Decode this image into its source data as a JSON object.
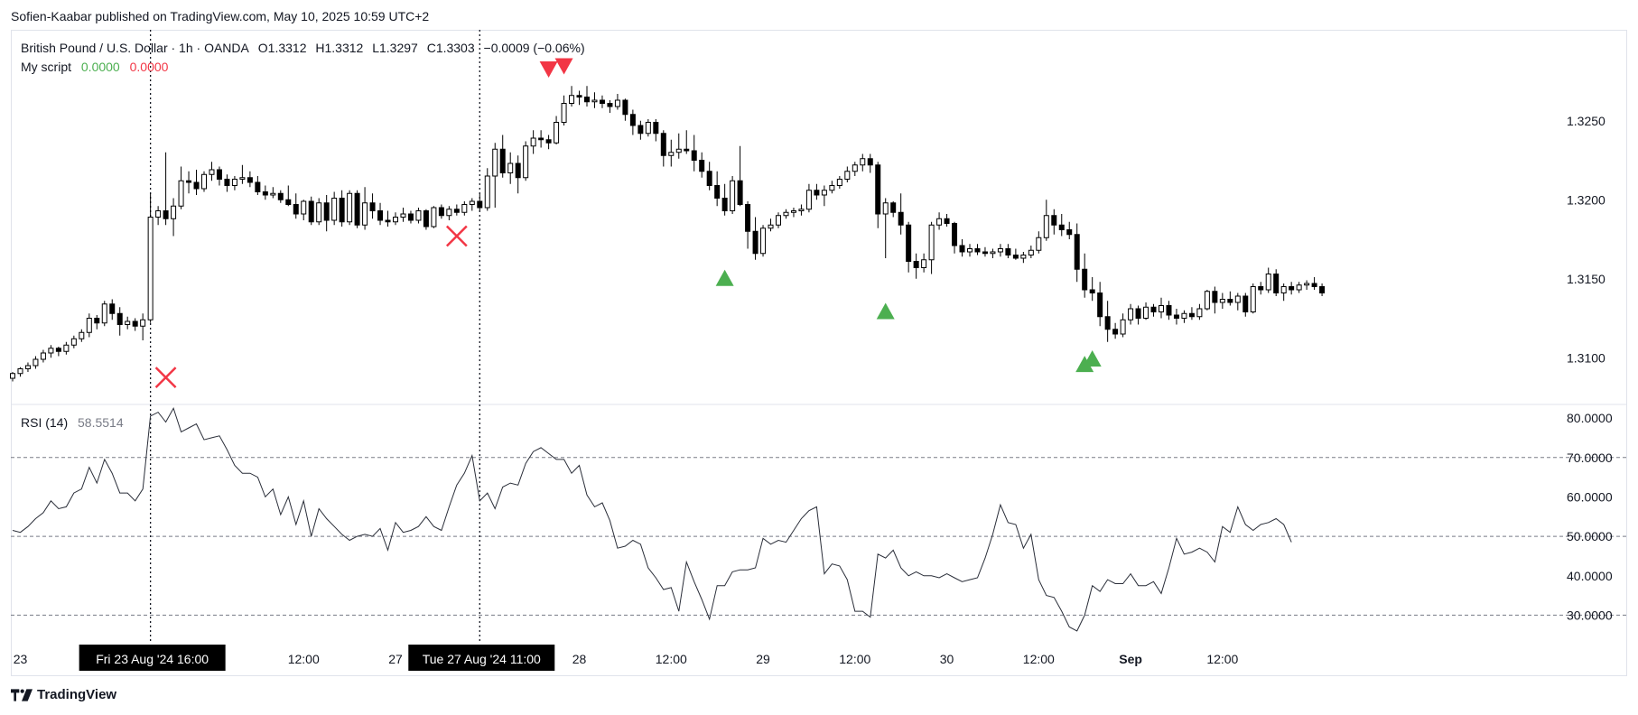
{
  "publisher": "Sofien-Kaabar published on TradingView.com, May 10, 2025 10:59 UTC+2",
  "legend": {
    "symbol": "British Pound / U.S. Dollar · 1h · OANDA",
    "open": "O1.3312",
    "high": "H1.3312",
    "low": "L1.3297",
    "close": "C1.3303",
    "change": "−0.0009 (−0.06%)",
    "script_name": "My script",
    "script_v1": "0.0000",
    "script_v2": "0.0000",
    "rsi_name": "RSI (14)",
    "rsi_value": "58.5514"
  },
  "footer": {
    "brand": "TradingView"
  },
  "colors": {
    "up": "#ffffff",
    "down": "#000000",
    "buy_signal": "#4caf50",
    "sell_signal": "#f23645",
    "text": "#131722"
  },
  "chart_data": {
    "type": "candlestick",
    "timeframe": "1h",
    "price_axis": {
      "ylim": [
        1.3075,
        1.3295
      ],
      "ticks": [
        "1.3100",
        "1.3150",
        "1.3200",
        "1.3250"
      ]
    },
    "rsi_axis": {
      "ylim": [
        23,
        83
      ],
      "ticks": [
        "30.0000",
        "40.0000",
        "50.0000",
        "60.0000",
        "70.0000",
        "80.0000"
      ],
      "levels": [
        70,
        50,
        30
      ]
    },
    "x_labels": [
      {
        "i": 1,
        "text": "23"
      },
      {
        "i": 38,
        "text": "12:00"
      },
      {
        "i": 50,
        "text": "27"
      },
      {
        "i": 74,
        "text": "28"
      },
      {
        "i": 86,
        "text": "12:00"
      },
      {
        "i": 98,
        "text": "29"
      },
      {
        "i": 110,
        "text": "12:00"
      },
      {
        "i": 122,
        "text": "30"
      },
      {
        "i": 134,
        "text": "12:00"
      },
      {
        "i": 146,
        "text": "Sep"
      },
      {
        "i": 158,
        "text": "12:00"
      }
    ],
    "crosshairs": [
      {
        "i": 18,
        "text": "Fri 23 Aug '24   16:00"
      },
      {
        "i": 61,
        "text": "Tue 27 Aug '24   11:00"
      }
    ],
    "markers": [
      {
        "i": 20,
        "type": "cross",
        "price": 1.30875
      },
      {
        "i": 58,
        "type": "cross",
        "price": 1.3177
      },
      {
        "i": 70,
        "type": "sell",
        "price": 1.3283
      },
      {
        "i": 72,
        "type": "sell",
        "price": 1.3285
      },
      {
        "i": 93,
        "type": "buy",
        "price": 1.315
      },
      {
        "i": 114,
        "type": "buy",
        "price": 1.3129
      },
      {
        "i": 140,
        "type": "buy",
        "price": 1.30955
      },
      {
        "i": 141,
        "type": "buy",
        "price": 1.3099
      }
    ],
    "candles": [
      [
        1.3087,
        1.3091,
        1.3085,
        1.309
      ],
      [
        1.309,
        1.3094,
        1.3088,
        1.3093
      ],
      [
        1.3093,
        1.3097,
        1.3091,
        1.3095
      ],
      [
        1.3095,
        1.3101,
        1.3093,
        1.3099
      ],
      [
        1.3099,
        1.3105,
        1.3097,
        1.3103
      ],
      [
        1.3103,
        1.3108,
        1.31,
        1.3106
      ],
      [
        1.3106,
        1.3107,
        1.3101,
        1.3104
      ],
      [
        1.3104,
        1.311,
        1.3102,
        1.3108
      ],
      [
        1.3108,
        1.3114,
        1.3106,
        1.3112
      ],
      [
        1.3112,
        1.3118,
        1.311,
        1.3116
      ],
      [
        1.3116,
        1.3128,
        1.3113,
        1.3125
      ],
      [
        1.3125,
        1.3127,
        1.3118,
        1.3122
      ],
      [
        1.3122,
        1.3136,
        1.312,
        1.3134
      ],
      [
        1.3134,
        1.3137,
        1.3124,
        1.3128
      ],
      [
        1.3128,
        1.3132,
        1.3114,
        1.3121
      ],
      [
        1.3121,
        1.3126,
        1.3118,
        1.3123
      ],
      [
        1.3123,
        1.3125,
        1.3117,
        1.312
      ],
      [
        1.312,
        1.3128,
        1.3111,
        1.3124
      ],
      [
        1.3124,
        1.3204,
        1.3122,
        1.3189
      ],
      [
        1.3189,
        1.3196,
        1.3184,
        1.3193
      ],
      [
        1.3193,
        1.323,
        1.3184,
        1.3188
      ],
      [
        1.3188,
        1.3201,
        1.3177,
        1.3196
      ],
      [
        1.3196,
        1.3221,
        1.3194,
        1.3212
      ],
      [
        1.3212,
        1.3218,
        1.3204,
        1.3211
      ],
      [
        1.3211,
        1.3219,
        1.3203,
        1.3207
      ],
      [
        1.3207,
        1.3218,
        1.3205,
        1.3216
      ],
      [
        1.3216,
        1.3224,
        1.3212,
        1.3219
      ],
      [
        1.3219,
        1.3221,
        1.3209,
        1.3213
      ],
      [
        1.3213,
        1.3216,
        1.3205,
        1.3209
      ],
      [
        1.3209,
        1.3215,
        1.3206,
        1.3213
      ],
      [
        1.3213,
        1.3222,
        1.321,
        1.3214
      ],
      [
        1.3214,
        1.3218,
        1.3208,
        1.3211
      ],
      [
        1.3211,
        1.3215,
        1.3203,
        1.3205
      ],
      [
        1.3205,
        1.3209,
        1.32,
        1.3203
      ],
      [
        1.3203,
        1.3208,
        1.3201,
        1.3204
      ],
      [
        1.3204,
        1.3206,
        1.3198,
        1.32
      ],
      [
        1.32,
        1.3209,
        1.3196,
        1.3197
      ],
      [
        1.3197,
        1.3204,
        1.3188,
        1.3191
      ],
      [
        1.3191,
        1.32,
        1.3187,
        1.3199
      ],
      [
        1.3199,
        1.3202,
        1.3184,
        1.3186
      ],
      [
        1.3186,
        1.3201,
        1.3184,
        1.3198
      ],
      [
        1.3198,
        1.3203,
        1.318,
        1.3187
      ],
      [
        1.3187,
        1.3205,
        1.3184,
        1.3201
      ],
      [
        1.3201,
        1.3206,
        1.3183,
        1.3186
      ],
      [
        1.3186,
        1.3206,
        1.3184,
        1.3204
      ],
      [
        1.3204,
        1.3206,
        1.3182,
        1.3184
      ],
      [
        1.3184,
        1.3208,
        1.3181,
        1.3198
      ],
      [
        1.3198,
        1.3204,
        1.3188,
        1.3193
      ],
      [
        1.3193,
        1.3198,
        1.3184,
        1.3187
      ],
      [
        1.3187,
        1.3193,
        1.3183,
        1.3186
      ],
      [
        1.3186,
        1.3192,
        1.3184,
        1.3189
      ],
      [
        1.3189,
        1.3195,
        1.3186,
        1.3191
      ],
      [
        1.3191,
        1.3193,
        1.3185,
        1.3187
      ],
      [
        1.3187,
        1.3195,
        1.3185,
        1.3193
      ],
      [
        1.3193,
        1.3194,
        1.3181,
        1.3183
      ],
      [
        1.3183,
        1.3196,
        1.3182,
        1.3195
      ],
      [
        1.3195,
        1.3197,
        1.3188,
        1.319
      ],
      [
        1.319,
        1.3196,
        1.3187,
        1.3194
      ],
      [
        1.3194,
        1.3197,
        1.319,
        1.3192
      ],
      [
        1.3192,
        1.3199,
        1.319,
        1.3197
      ],
      [
        1.3197,
        1.3201,
        1.3193,
        1.3199
      ],
      [
        1.3199,
        1.3204,
        1.3193,
        1.3195
      ],
      [
        1.3195,
        1.322,
        1.3193,
        1.3215
      ],
      [
        1.3215,
        1.3236,
        1.3195,
        1.3232
      ],
      [
        1.3232,
        1.3241,
        1.3214,
        1.3217
      ],
      [
        1.3217,
        1.323,
        1.321,
        1.3223
      ],
      [
        1.3223,
        1.3228,
        1.3204,
        1.3214
      ],
      [
        1.3214,
        1.3237,
        1.3212,
        1.3234
      ],
      [
        1.3234,
        1.3244,
        1.3229,
        1.3239
      ],
      [
        1.3239,
        1.3244,
        1.3233,
        1.3238
      ],
      [
        1.3238,
        1.3241,
        1.3232,
        1.3236
      ],
      [
        1.3236,
        1.3253,
        1.3235,
        1.3249
      ],
      [
        1.3249,
        1.3266,
        1.3247,
        1.3261
      ],
      [
        1.3261,
        1.3272,
        1.3259,
        1.3266
      ],
      [
        1.3266,
        1.3269,
        1.326,
        1.3265
      ],
      [
        1.3265,
        1.3272,
        1.3259,
        1.3262
      ],
      [
        1.3262,
        1.3268,
        1.3258,
        1.3263
      ],
      [
        1.3263,
        1.3266,
        1.3258,
        1.3261
      ],
      [
        1.3261,
        1.3263,
        1.3255,
        1.3259
      ],
      [
        1.3259,
        1.3267,
        1.3257,
        1.3263
      ],
      [
        1.3263,
        1.3264,
        1.325,
        1.3254
      ],
      [
        1.3254,
        1.3257,
        1.3241,
        1.3247
      ],
      [
        1.3247,
        1.325,
        1.3238,
        1.3242
      ],
      [
        1.3242,
        1.3251,
        1.324,
        1.3249
      ],
      [
        1.3249,
        1.3251,
        1.3237,
        1.3242
      ],
      [
        1.3242,
        1.3244,
        1.3221,
        1.3228
      ],
      [
        1.3228,
        1.3238,
        1.3221,
        1.323
      ],
      [
        1.323,
        1.3242,
        1.3226,
        1.3232
      ],
      [
        1.3232,
        1.3244,
        1.3229,
        1.3231
      ],
      [
        1.3231,
        1.3241,
        1.3218,
        1.3225
      ],
      [
        1.3225,
        1.323,
        1.3214,
        1.3218
      ],
      [
        1.3218,
        1.3224,
        1.3206,
        1.3209
      ],
      [
        1.3209,
        1.3218,
        1.3196,
        1.3201
      ],
      [
        1.3201,
        1.321,
        1.319,
        1.3193
      ],
      [
        1.3193,
        1.3215,
        1.3191,
        1.3212
      ],
      [
        1.3212,
        1.3234,
        1.3196,
        1.3197
      ],
      [
        1.3197,
        1.3199,
        1.3169,
        1.318
      ],
      [
        1.318,
        1.3189,
        1.3162,
        1.3166
      ],
      [
        1.3166,
        1.3184,
        1.3164,
        1.3182
      ],
      [
        1.3182,
        1.3188,
        1.318,
        1.3184
      ],
      [
        1.3184,
        1.3192,
        1.3182,
        1.319
      ],
      [
        1.319,
        1.3194,
        1.3188,
        1.3192
      ],
      [
        1.3192,
        1.3195,
        1.3189,
        1.3193
      ],
      [
        1.3193,
        1.3197,
        1.319,
        1.3194
      ],
      [
        1.3194,
        1.321,
        1.3192,
        1.3206
      ],
      [
        1.3206,
        1.321,
        1.32,
        1.3203
      ],
      [
        1.3203,
        1.3209,
        1.3196,
        1.3206
      ],
      [
        1.3206,
        1.3212,
        1.3204,
        1.3209
      ],
      [
        1.3209,
        1.3215,
        1.3207,
        1.3213
      ],
      [
        1.3213,
        1.3221,
        1.3211,
        1.3218
      ],
      [
        1.3218,
        1.3224,
        1.3215,
        1.3222
      ],
      [
        1.3222,
        1.3229,
        1.3218,
        1.3226
      ],
      [
        1.3226,
        1.3229,
        1.3217,
        1.3222
      ],
      [
        1.3222,
        1.3224,
        1.3182,
        1.3191
      ],
      [
        1.3191,
        1.3201,
        1.3163,
        1.3198
      ],
      [
        1.3198,
        1.3199,
        1.3189,
        1.3192
      ],
      [
        1.3192,
        1.3204,
        1.3178,
        1.3184
      ],
      [
        1.3184,
        1.3186,
        1.3154,
        1.3161
      ],
      [
        1.3161,
        1.3166,
        1.315,
        1.3157
      ],
      [
        1.3157,
        1.3166,
        1.3154,
        1.3162
      ],
      [
        1.3162,
        1.3186,
        1.3153,
        1.3184
      ],
      [
        1.3184,
        1.3192,
        1.3181,
        1.3188
      ],
      [
        1.3188,
        1.3191,
        1.3183,
        1.3185
      ],
      [
        1.3185,
        1.3186,
        1.3166,
        1.3171
      ],
      [
        1.3171,
        1.3175,
        1.3164,
        1.3167
      ],
      [
        1.3167,
        1.3172,
        1.3164,
        1.3169
      ],
      [
        1.3169,
        1.3172,
        1.3165,
        1.3167
      ],
      [
        1.3167,
        1.317,
        1.3164,
        1.3166
      ],
      [
        1.3166,
        1.3169,
        1.3163,
        1.3167
      ],
      [
        1.3167,
        1.3172,
        1.3164,
        1.3169
      ],
      [
        1.3169,
        1.3172,
        1.3163,
        1.3165
      ],
      [
        1.3165,
        1.3169,
        1.3162,
        1.3163
      ],
      [
        1.3163,
        1.3167,
        1.316,
        1.3165
      ],
      [
        1.3165,
        1.3171,
        1.3163,
        1.3168
      ],
      [
        1.3168,
        1.318,
        1.3166,
        1.3176
      ],
      [
        1.3176,
        1.32,
        1.3174,
        1.319
      ],
      [
        1.319,
        1.3194,
        1.3178,
        1.3184
      ],
      [
        1.3184,
        1.3191,
        1.3177,
        1.3181
      ],
      [
        1.3181,
        1.3186,
        1.3175,
        1.3178
      ],
      [
        1.3178,
        1.3185,
        1.3148,
        1.3156
      ],
      [
        1.3156,
        1.3166,
        1.3138,
        1.3143
      ],
      [
        1.3143,
        1.3151,
        1.3136,
        1.3141
      ],
      [
        1.3141,
        1.3148,
        1.312,
        1.3126
      ],
      [
        1.3126,
        1.3136,
        1.311,
        1.3118
      ],
      [
        1.3118,
        1.3122,
        1.3112,
        1.3115
      ],
      [
        1.3115,
        1.3128,
        1.3113,
        1.3124
      ],
      [
        1.3124,
        1.3134,
        1.3121,
        1.3131
      ],
      [
        1.3131,
        1.3133,
        1.3121,
        1.3125
      ],
      [
        1.3125,
        1.3135,
        1.3124,
        1.3132
      ],
      [
        1.3132,
        1.3134,
        1.3126,
        1.3129
      ],
      [
        1.3129,
        1.3138,
        1.3125,
        1.3133
      ],
      [
        1.3133,
        1.3136,
        1.3124,
        1.3127
      ],
      [
        1.3127,
        1.3131,
        1.3121,
        1.3125
      ],
      [
        1.3125,
        1.313,
        1.3122,
        1.3128
      ],
      [
        1.3128,
        1.3132,
        1.3124,
        1.3126
      ],
      [
        1.3126,
        1.3134,
        1.3124,
        1.3131
      ],
      [
        1.3131,
        1.3143,
        1.313,
        1.3142
      ],
      [
        1.3142,
        1.3145,
        1.3128,
        1.3135
      ],
      [
        1.3135,
        1.3141,
        1.3131,
        1.3137
      ],
      [
        1.3137,
        1.3142,
        1.3133,
        1.3135
      ],
      [
        1.3135,
        1.3141,
        1.313,
        1.3139
      ],
      [
        1.3139,
        1.3141,
        1.3126,
        1.3129
      ],
      [
        1.3129,
        1.3147,
        1.3128,
        1.3145
      ],
      [
        1.3145,
        1.3148,
        1.314,
        1.3143
      ],
      [
        1.3143,
        1.3157,
        1.3141,
        1.3153
      ],
      [
        1.3153,
        1.3156,
        1.3139,
        1.3141
      ],
      [
        1.3141,
        1.3147,
        1.3136,
        1.3145
      ],
      [
        1.3145,
        1.3148,
        1.314,
        1.3143
      ],
      [
        1.3143,
        1.3148,
        1.3141,
        1.3146
      ],
      [
        1.3146,
        1.3149,
        1.3143,
        1.3147
      ],
      [
        1.3147,
        1.3151,
        1.3143,
        1.3145
      ],
      [
        1.3145,
        1.3147,
        1.3139,
        1.3141
      ]
    ],
    "rsi": [
      51.5,
      51.0,
      52.5,
      54.5,
      56.0,
      59.0,
      57.0,
      57.5,
      61.0,
      62.0,
      67.5,
      63.5,
      69.5,
      66.0,
      61.0,
      61.0,
      59.0,
      62.0,
      80.5,
      81.5,
      79.0,
      82.5,
      76.5,
      77.5,
      78.5,
      74.5,
      75.0,
      75.5,
      72.0,
      68.0,
      66.0,
      66.0,
      65.0,
      60.0,
      62.0,
      55.5,
      60.0,
      53.0,
      59.0,
      50.0,
      57.0,
      54.5,
      52.5,
      50.5,
      49.0,
      50.0,
      50.5,
      50.0,
      52.0,
      46.5,
      53.5,
      51.0,
      51.5,
      52.5,
      55.0,
      52.5,
      51.5,
      57.5,
      63.0,
      66.0,
      70.5,
      59.0,
      61.0,
      57.0,
      62.5,
      63.5,
      63.0,
      68.5,
      71.5,
      72.5,
      71.0,
      69.5,
      69.5,
      66.0,
      68.0,
      60.5,
      57.5,
      58.5,
      54.0,
      47.0,
      47.5,
      49.0,
      48.0,
      42.0,
      39.5,
      36.5,
      37.0,
      31.0,
      43.5,
      38.5,
      34.0,
      29.0,
      37.5,
      37.5,
      41.0,
      41.5,
      41.5,
      42.0,
      49.5,
      48.0,
      49.0,
      48.5,
      51.5,
      54.5,
      56.5,
      57.5,
      40.5,
      43.0,
      42.5,
      39.0,
      31.0,
      31.0,
      29.5,
      45.5,
      44.5,
      46.5,
      42.0,
      40.0,
      41.0,
      40.0,
      40.0,
      39.5,
      40.5,
      39.5,
      38.5,
      39.0,
      39.5,
      44.5,
      50.5,
      58.0,
      53.5,
      53.0,
      47.0,
      50.5,
      39.0,
      35.0,
      34.5,
      31.0,
      27.0,
      26.0,
      30.0,
      37.5,
      36.0,
      39.0,
      38.0,
      38.0,
      40.5,
      37.5,
      37.5,
      38.5,
      35.5,
      42.0,
      49.5,
      45.5,
      46.0,
      47.0,
      46.0,
      43.5,
      52.5,
      51.0,
      57.5,
      53.0,
      51.5,
      53.0,
      53.5,
      54.5,
      53.0,
      48.5
    ]
  }
}
